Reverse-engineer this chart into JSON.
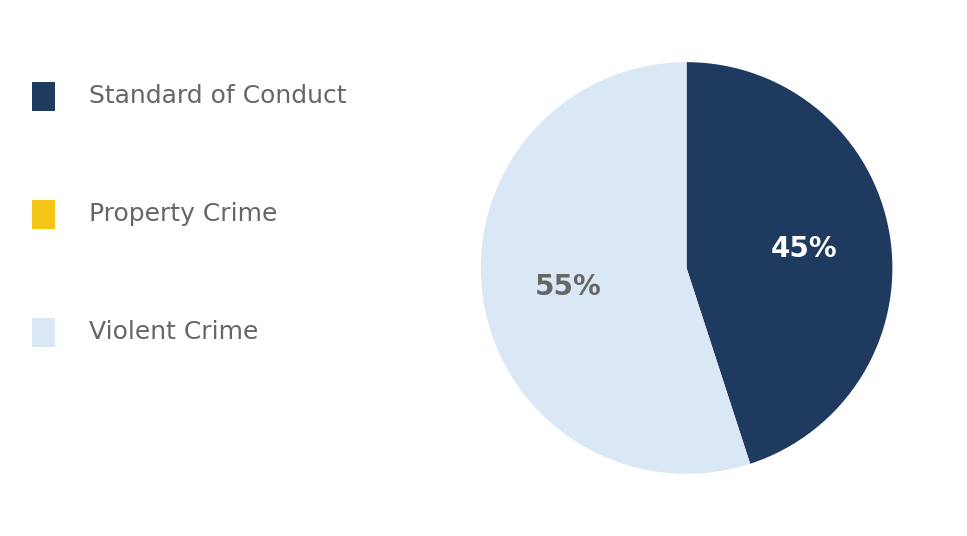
{
  "labels": [
    "Standard of Conduct",
    "Property Crime",
    "Violent Crime"
  ],
  "values": [
    45,
    0.0001,
    55
  ],
  "colors": [
    "#1e3a5f",
    "#f5c518",
    "#dae8f5"
  ],
  "text_colors": [
    "#ffffff",
    "#ffffff",
    "#666666"
  ],
  "pct_labels": [
    "45%",
    "",
    "55%"
  ],
  "legend_text_color": "#666666",
  "background_color": "#ffffff",
  "legend_fontsize": 18,
  "label_fontsize": 20,
  "startangle": 90
}
